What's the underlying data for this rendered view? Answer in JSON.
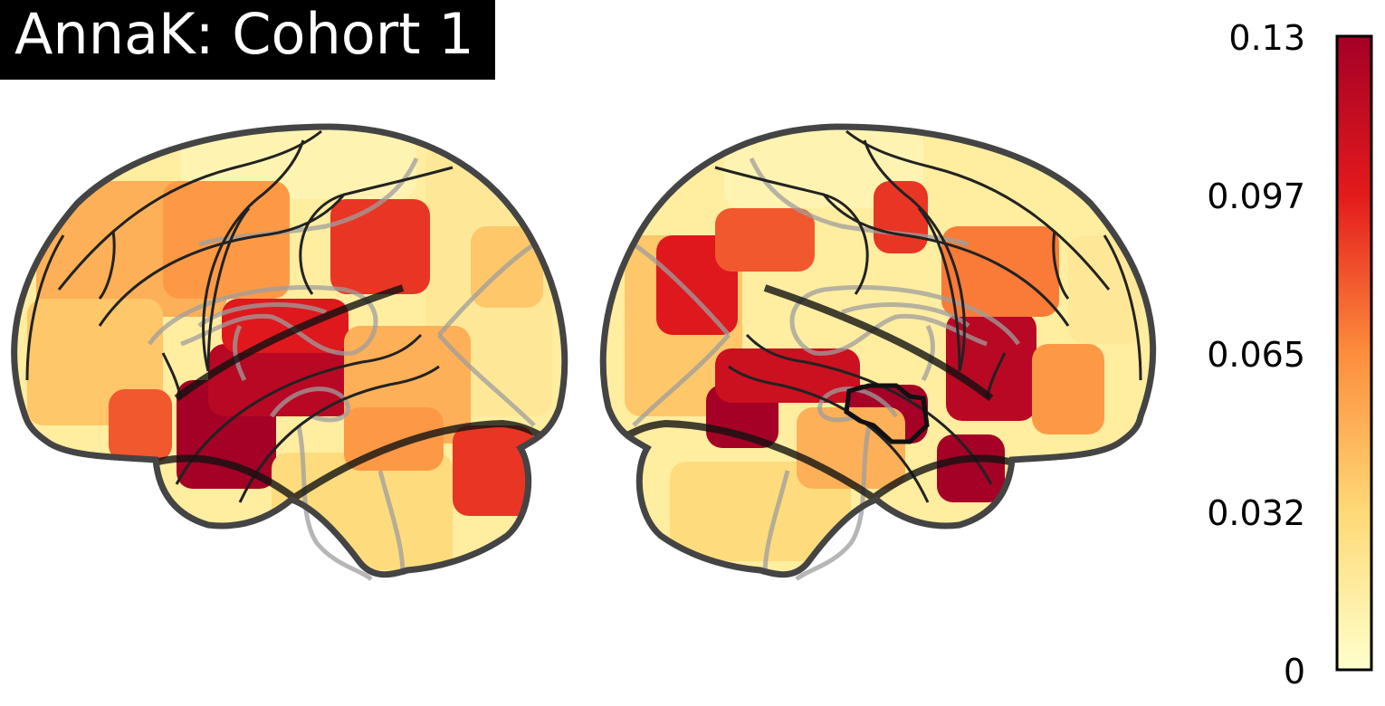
{
  "title": "AnnaK: Cohort 1",
  "colorbar": {
    "ticks": [
      "0.13",
      "0.097",
      "0.065",
      "0.032",
      "0"
    ],
    "min": 0,
    "max": 0.13,
    "colors": [
      "#ffffcc",
      "#fed976",
      "#fd8d3c",
      "#e31a1c",
      "#a50026"
    ]
  },
  "regions": [
    {
      "view": "left",
      "value": 0.01
    },
    {
      "view": "left",
      "value": 0.02
    },
    {
      "view": "left",
      "value": 0.05
    },
    {
      "view": "left",
      "value": 0.06
    },
    {
      "view": "left",
      "value": 0.04
    },
    {
      "view": "left",
      "value": 0.09
    },
    {
      "view": "left",
      "value": 0.13
    },
    {
      "view": "left",
      "value": 0.12
    },
    {
      "view": "left",
      "value": 0.1
    },
    {
      "view": "left",
      "value": 0.08
    },
    {
      "view": "left",
      "value": 0.05
    },
    {
      "view": "left",
      "value": 0.03
    },
    {
      "view": "left",
      "value": 0.09
    },
    {
      "view": "left",
      "value": 0.04
    },
    {
      "view": "left",
      "value": 0.06
    },
    {
      "view": "right",
      "value": 0.01
    },
    {
      "view": "right",
      "value": 0.04
    },
    {
      "view": "right",
      "value": 0.1
    },
    {
      "view": "right",
      "value": 0.08
    },
    {
      "view": "right",
      "value": 0.13
    },
    {
      "view": "right",
      "value": 0.11
    },
    {
      "view": "right",
      "value": 0.13
    },
    {
      "view": "right",
      "value": 0.12
    },
    {
      "view": "right",
      "value": 0.13
    },
    {
      "view": "right",
      "value": 0.09
    },
    {
      "view": "right",
      "value": 0.06
    },
    {
      "view": "right",
      "value": 0.03
    },
    {
      "view": "right",
      "value": 0.05
    },
    {
      "view": "right",
      "value": 0.07
    },
    {
      "view": "right",
      "value": 0.02
    }
  ]
}
